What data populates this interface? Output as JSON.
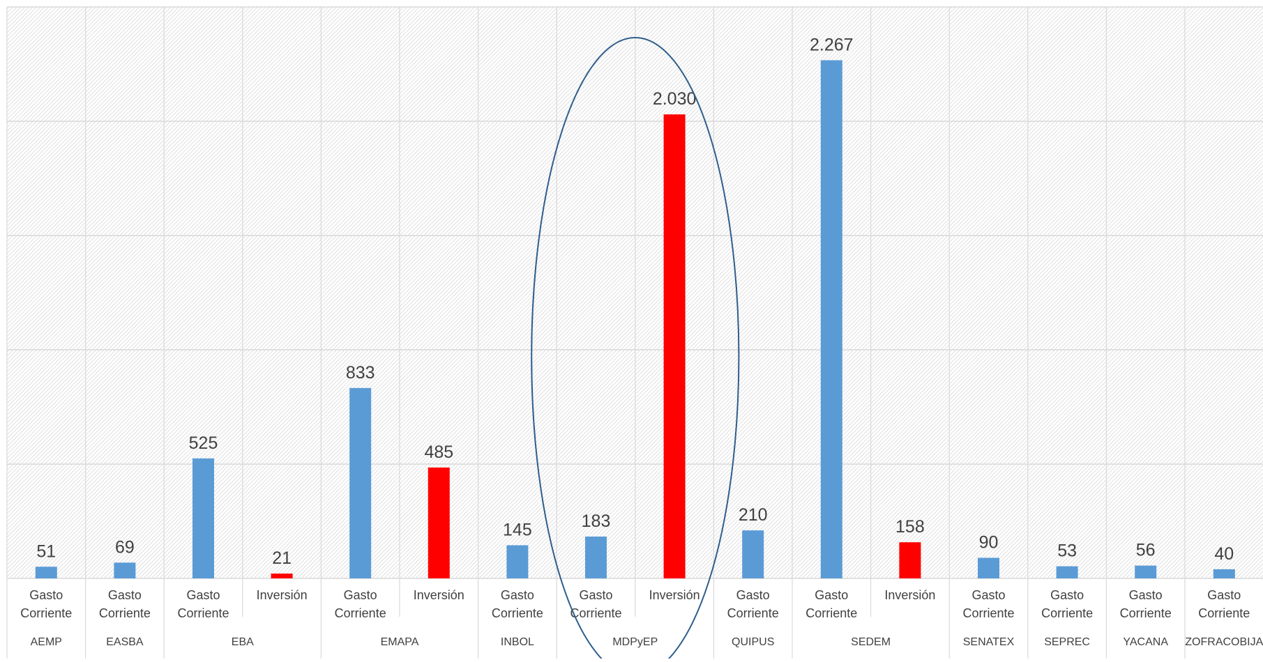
{
  "chart_data": {
    "type": "bar",
    "title": "",
    "xlabel": "",
    "ylabel": "",
    "ylim": [
      0,
      2500
    ],
    "y_gridlines": [
      0,
      500,
      1000,
      1500,
      2000,
      2500
    ],
    "grid": true,
    "legend": "none",
    "colors": {
      "Gasto Corriente": "#5b9bd5",
      "Inversión": "#ff0000"
    },
    "bars": [
      {
        "group": "AEMP",
        "category": "Gasto Corriente",
        "value": 51,
        "label": "51"
      },
      {
        "group": "EASBA",
        "category": "Gasto Corriente",
        "value": 69,
        "label": "69"
      },
      {
        "group": "EBA",
        "category": "Gasto Corriente",
        "value": 525,
        "label": "525"
      },
      {
        "group": "EBA",
        "category": "Inversión",
        "value": 21,
        "label": "21"
      },
      {
        "group": "EMAPA",
        "category": "Gasto Corriente",
        "value": 833,
        "label": "833"
      },
      {
        "group": "EMAPA",
        "category": "Inversión",
        "value": 485,
        "label": "485"
      },
      {
        "group": "INBOL",
        "category": "Gasto Corriente",
        "value": 145,
        "label": "145"
      },
      {
        "group": "MDPyEP",
        "category": "Gasto Corriente",
        "value": 183,
        "label": "183"
      },
      {
        "group": "MDPyEP",
        "category": "Inversión",
        "value": 2030,
        "label": "2.030"
      },
      {
        "group": "QUIPUS",
        "category": "Gasto Corriente",
        "value": 210,
        "label": "210"
      },
      {
        "group": "SEDEM",
        "category": "Gasto Corriente",
        "value": 2267,
        "label": "2.267"
      },
      {
        "group": "SEDEM",
        "category": "Inversión",
        "value": 158,
        "label": "158"
      },
      {
        "group": "SENATEX",
        "category": "Gasto Corriente",
        "value": 90,
        "label": "90"
      },
      {
        "group": "SEPREC",
        "category": "Gasto Corriente",
        "value": 53,
        "label": "53"
      },
      {
        "group": "YACANA",
        "category": "Gasto Corriente",
        "value": 56,
        "label": "56"
      },
      {
        "group": "ZOFRACOBIJA",
        "category": "Gasto Corriente",
        "value": 40,
        "label": "40"
      }
    ],
    "highlight": {
      "type": "ellipse",
      "group": "MDPyEP",
      "color": "#2e5e8c"
    }
  }
}
